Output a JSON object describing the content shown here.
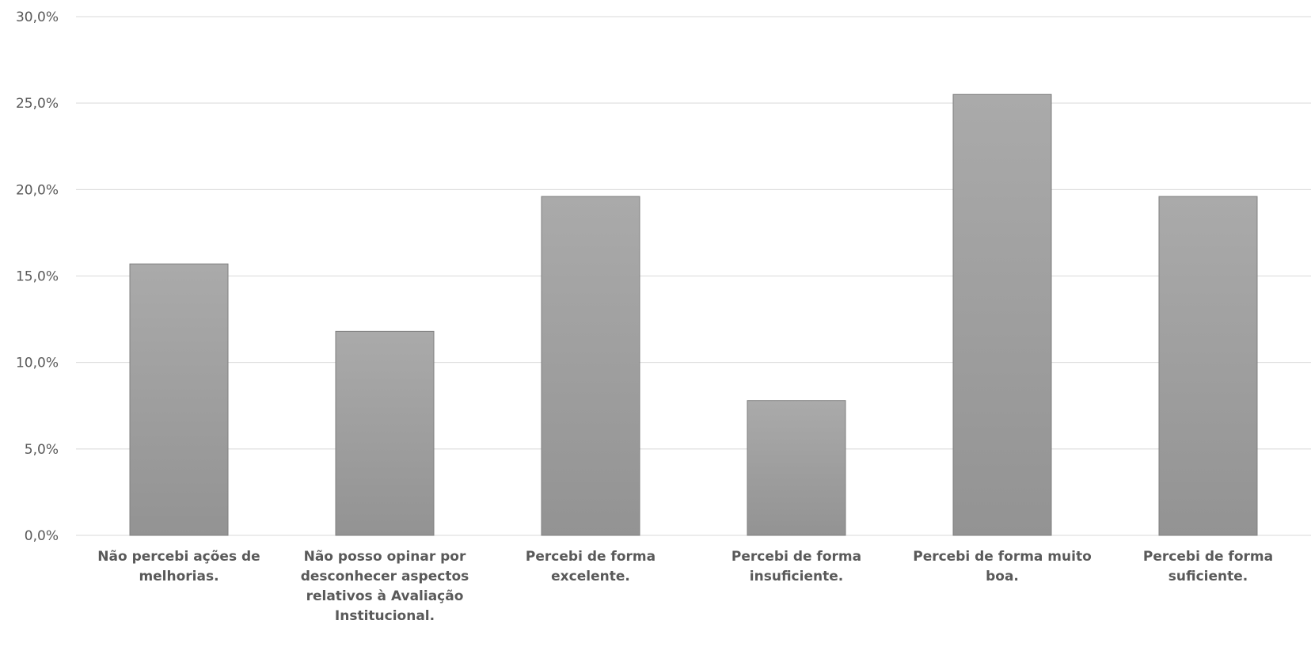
{
  "chart_data": {
    "type": "bar",
    "title": "",
    "xlabel": "",
    "ylabel": "",
    "ylim": [
      0,
      30
    ],
    "yticks": [
      "0,0%",
      "5,0%",
      "10,0%",
      "15,0%",
      "20,0%",
      "25,0%",
      "30,0%"
    ],
    "ytick_values": [
      0,
      5,
      10,
      15,
      20,
      25,
      30
    ],
    "grid": true,
    "legend": "none",
    "categories": [
      [
        "Não percebi ações de",
        "melhorias."
      ],
      [
        "Não posso opinar por",
        "desconhecer aspectos",
        "relativos à Avaliação",
        "Institucional."
      ],
      [
        "Percebi de forma",
        "excelente."
      ],
      [
        "Percebi de forma",
        "insuficiente."
      ],
      [
        "Percebi de forma muito",
        "boa."
      ],
      [
        "Percebi de forma",
        "suficiente."
      ]
    ],
    "values": [
      15.7,
      11.8,
      19.6,
      7.8,
      25.5,
      19.6
    ],
    "colors": {
      "bar_top": "#aaaaaa",
      "bar_bottom": "#939393",
      "bar_stroke": "#7f7f7f",
      "grid": "#d9d9d9",
      "text": "#595959"
    }
  }
}
